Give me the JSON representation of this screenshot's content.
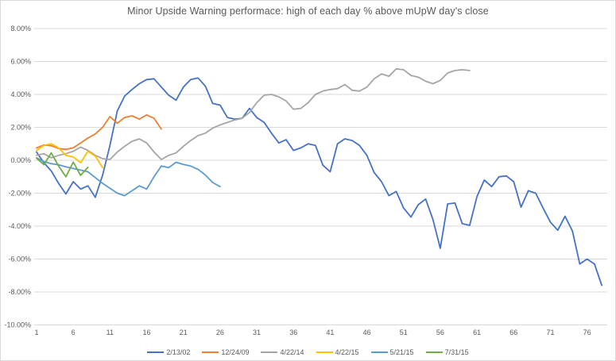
{
  "title": "Minor Upside Warning performace: high of each day % above mUpW day's close",
  "colors": {
    "text": "#595959",
    "gridline": "#d9d9d9",
    "frame_border": "#d9d9d9",
    "background": "#ffffff"
  },
  "chart_data": {
    "type": "line",
    "title": "Minor Upside Warning performace: high of each day % above mUpW day's close",
    "xlabel": "",
    "ylabel": "",
    "grid": "horizontal",
    "legend_position": "bottom-center",
    "ylim": [
      -10,
      8
    ],
    "xlim": [
      1,
      79
    ],
    "y_ticks": [
      {
        "label": "8.00%",
        "value": 8
      },
      {
        "label": "6.00%",
        "value": 6
      },
      {
        "label": "4.00%",
        "value": 4
      },
      {
        "label": "2.00%",
        "value": 2
      },
      {
        "label": "0.00%",
        "value": 0
      },
      {
        "label": "-2.00%",
        "value": -2
      },
      {
        "label": "-4.00%",
        "value": -4
      },
      {
        "label": "-6.00%",
        "value": -6
      },
      {
        "label": "-8.00%",
        "value": -8
      },
      {
        "label": "-10.00%",
        "value": -10
      }
    ],
    "x_ticks": [
      1,
      6,
      11,
      16,
      21,
      26,
      31,
      36,
      41,
      46,
      51,
      56,
      61,
      66,
      71,
      76
    ],
    "x_is_day_number": true,
    "series": [
      {
        "name": "2/13/02",
        "color": "#4472c4",
        "values": [
          0.5,
          -0.15,
          -0.65,
          -1.4,
          -2.05,
          -1.3,
          -1.75,
          -1.55,
          -2.25,
          -0.9,
          0.9,
          3.0,
          3.9,
          4.3,
          4.65,
          4.9,
          4.95,
          4.45,
          3.95,
          3.65,
          4.45,
          4.9,
          5.0,
          4.5,
          3.45,
          3.35,
          2.6,
          2.5,
          2.55,
          3.15,
          2.6,
          2.3,
          1.65,
          1.05,
          1.25,
          0.6,
          0.75,
          1.0,
          0.9,
          -0.3,
          -0.7,
          1.0,
          1.3,
          1.2,
          0.9,
          0.3,
          -0.75,
          -1.3,
          -2.15,
          -1.9,
          -2.9,
          -3.45,
          -2.7,
          -2.35,
          -3.6,
          -5.35,
          -2.65,
          -2.6,
          -3.85,
          -3.95,
          -2.2,
          -1.2,
          -1.6,
          -1.0,
          -0.95,
          -1.3,
          -2.85,
          -1.85,
          -2.0,
          -2.9,
          -3.75,
          -4.25,
          -3.4,
          -4.3,
          -6.3,
          -6.0,
          -6.3,
          -7.6
        ]
      },
      {
        "name": "12/24/09",
        "color": "#ed7d31",
        "values": [
          0.75,
          0.93,
          0.88,
          0.72,
          0.66,
          0.75,
          1.05,
          1.35,
          1.6,
          2.0,
          2.65,
          2.25,
          2.6,
          2.7,
          2.5,
          2.75,
          2.55,
          1.9
        ]
      },
      {
        "name": "4/22/14",
        "color": "#a5a5a5",
        "values": [
          0.3,
          0.4,
          0.15,
          0.3,
          0.4,
          0.55,
          0.8,
          0.6,
          0.3,
          0.1,
          0.05,
          0.5,
          0.85,
          1.15,
          1.3,
          1.05,
          0.5,
          0.05,
          0.3,
          0.45,
          0.85,
          1.2,
          1.5,
          1.65,
          1.95,
          2.15,
          2.3,
          2.45,
          2.55,
          2.9,
          3.5,
          3.95,
          4.0,
          3.85,
          3.6,
          3.1,
          3.15,
          3.5,
          4.0,
          4.2,
          4.3,
          4.35,
          4.6,
          4.25,
          4.2,
          4.45,
          4.95,
          5.25,
          5.1,
          5.55,
          5.5,
          5.15,
          5.05,
          4.8,
          4.65,
          4.85,
          5.3,
          5.45,
          5.5,
          5.45
        ]
      },
      {
        "name": "4/22/15",
        "color": "#ffc000",
        "values": [
          0.6,
          0.9,
          1.0,
          0.75,
          0.3,
          0.2,
          -0.15,
          0.55,
          0.25,
          -0.45
        ]
      },
      {
        "name": "5/21/15",
        "color": "#5b9bd5",
        "values": [
          0.15,
          -0.08,
          -0.2,
          -0.28,
          -0.4,
          -0.5,
          -0.6,
          -0.7,
          -1.05,
          -1.4,
          -1.7,
          -2.0,
          -2.15,
          -1.85,
          -1.55,
          -1.75,
          -1.0,
          -0.35,
          -0.45,
          -0.12,
          -0.25,
          -0.35,
          -0.55,
          -0.9,
          -1.35,
          -1.6
        ]
      },
      {
        "name": "7/31/15",
        "color": "#70ad47",
        "values": [
          0.13,
          -0.27,
          0.45,
          -0.35,
          -1.0,
          -0.11,
          -0.92,
          -0.43
        ]
      }
    ]
  }
}
